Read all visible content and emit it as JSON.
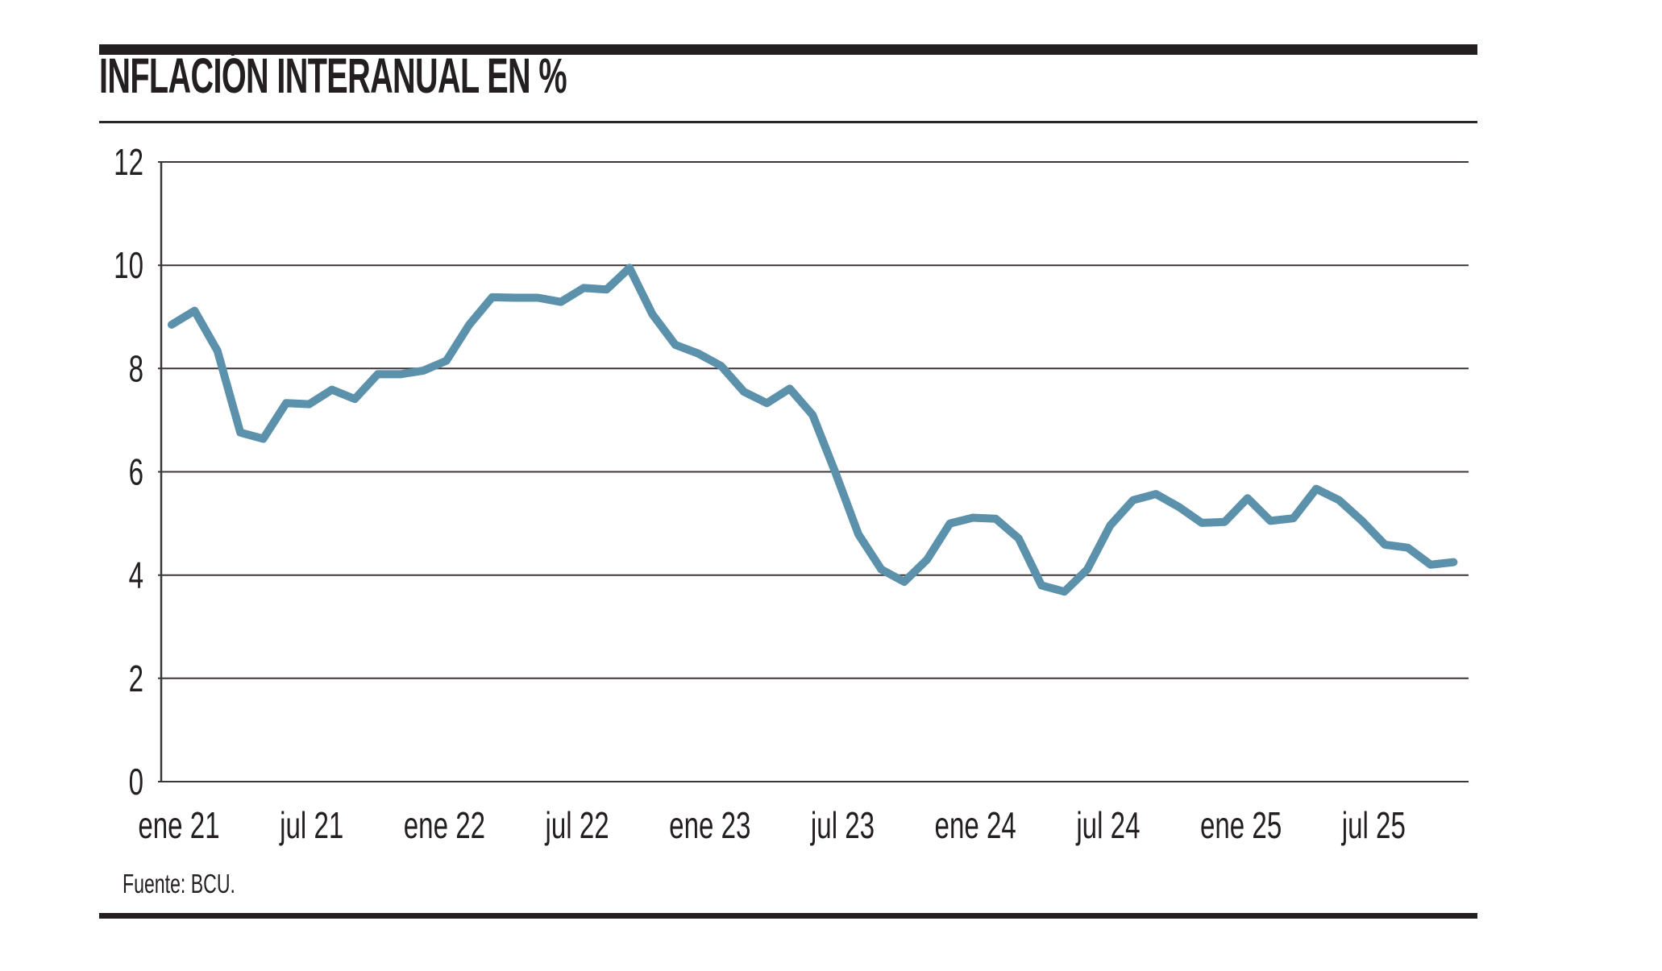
{
  "header": {
    "title": "INFLACIÓN INTERANUAL EN %"
  },
  "source_note": "Fuente: BCU.",
  "chart_data": {
    "type": "line",
    "title": "INFLACIÓN INTERANUAL EN %",
    "series_name": "Inflación interanual (%)",
    "source": "Fuente: BCU.",
    "line_color": "#5B91AB",
    "grid": "horizontal",
    "legend": "none",
    "ylim": [
      0,
      12
    ],
    "y_ticks": [
      0,
      2,
      4,
      6,
      8,
      10,
      12
    ],
    "x_tick_labels": [
      "ene 21",
      "jul 21",
      "ene 22",
      "jul 22",
      "ene 23",
      "jul 23",
      "ene 24",
      "jul 24",
      "ene 25",
      "jul 25"
    ],
    "x_tick_month_indexes": [
      0,
      6,
      12,
      18,
      24,
      30,
      36,
      42,
      48,
      54
    ],
    "months": [
      "ene 21",
      "feb 21",
      "mar 21",
      "abr 21",
      "may 21",
      "jun 21",
      "jul 21",
      "ago 21",
      "sep 21",
      "oct 21",
      "nov 21",
      "dic 21",
      "ene 22",
      "feb 22",
      "mar 22",
      "abr 22",
      "may 22",
      "jun 22",
      "jul 22",
      "ago 22",
      "sep 22",
      "oct 22",
      "nov 22",
      "dic 22",
      "ene 23",
      "feb 23",
      "mar 23",
      "abr 23",
      "may 23",
      "jun 23",
      "jul 23",
      "ago 23",
      "sep 23",
      "oct 23",
      "nov 23",
      "dic 23",
      "ene 24",
      "feb 24",
      "mar 24",
      "abr 24",
      "may 24",
      "jun 24",
      "jul 24",
      "ago 24",
      "sep 24",
      "oct 24",
      "nov 24",
      "dic 24",
      "ene 25",
      "feb 25",
      "mar 25",
      "abr 25",
      "may 25",
      "jun 25",
      "jul 25",
      "ago 25",
      "sep 25"
    ],
    "values": [
      8.85,
      9.12,
      8.34,
      6.76,
      6.64,
      7.33,
      7.31,
      7.59,
      7.41,
      7.89,
      7.89,
      7.96,
      8.15,
      8.85,
      9.38,
      9.37,
      9.37,
      9.29,
      9.56,
      9.53,
      9.95,
      9.05,
      8.46,
      8.29,
      8.05,
      7.55,
      7.33,
      7.61,
      7.1,
      5.98,
      4.79,
      4.11,
      3.87,
      4.3,
      5.0,
      5.11,
      5.09,
      4.71,
      3.8,
      3.68,
      4.11,
      4.96,
      5.45,
      5.57,
      5.32,
      5.01,
      5.03,
      5.49,
      5.05,
      5.1,
      5.67,
      5.45,
      5.05,
      4.59,
      4.53,
      4.2,
      4.25
    ]
  }
}
